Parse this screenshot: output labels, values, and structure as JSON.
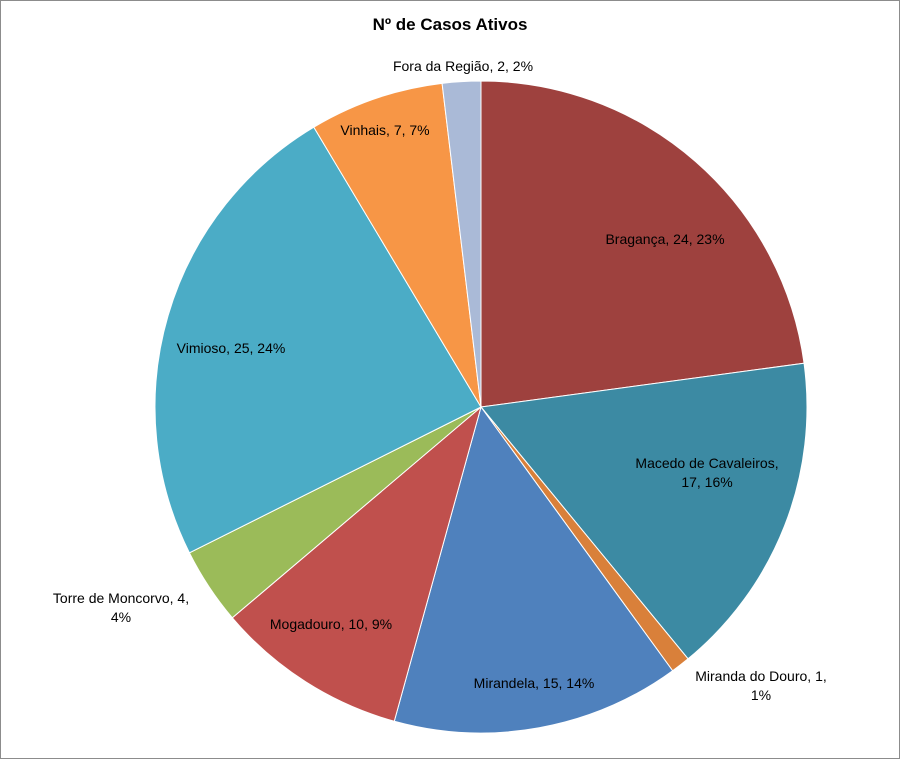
{
  "chart_data": {
    "type": "pie",
    "title": "Nº de Casos Ativos",
    "slices": [
      {
        "name": "Bragança",
        "value": 24,
        "percent": "23%",
        "color": "#9E413E",
        "label_lines": [
          "Bragança, 24, 23%"
        ]
      },
      {
        "name": "Macedo de Cavaleiros",
        "value": 17,
        "percent": "16%",
        "color": "#3C8AA3",
        "label_lines": [
          "Macedo de Cavaleiros,",
          "17, 16%"
        ]
      },
      {
        "name": "Miranda do Douro",
        "value": 1,
        "percent": "1%",
        "color": "#D9803A",
        "label_lines": [
          "Miranda do Douro, 1,",
          "1%"
        ]
      },
      {
        "name": "Mirandela",
        "value": 15,
        "percent": "14%",
        "color": "#4F81BD",
        "label_lines": [
          "Mirandela, 15, 14%"
        ]
      },
      {
        "name": "Mogadouro",
        "value": 10,
        "percent": "9%",
        "color": "#C0504D",
        "label_lines": [
          "Mogadouro, 10, 9%"
        ]
      },
      {
        "name": "Torre de Moncorvo",
        "value": 4,
        "percent": "4%",
        "color": "#9BBB59",
        "label_lines": [
          "Torre de Moncorvo, 4,",
          "4%"
        ]
      },
      {
        "name": "Vimioso",
        "value": 25,
        "percent": "24%",
        "color": "#4BACC6",
        "label_lines": [
          "Vimioso, 25, 24%"
        ]
      },
      {
        "name": "Vinhais",
        "value": 7,
        "percent": "7%",
        "color": "#F79646",
        "label_lines": [
          "Vinhais, 7, 7%"
        ]
      },
      {
        "name": "Fora da Região",
        "value": 2,
        "percent": "2%",
        "color": "#AABAD7",
        "label_lines": [
          "Fora da Região, 2, 2%"
        ]
      }
    ],
    "start_angle": "12 o'clock",
    "direction": "clockwise",
    "legend": "none",
    "data_labels": "category, value, percentage"
  }
}
